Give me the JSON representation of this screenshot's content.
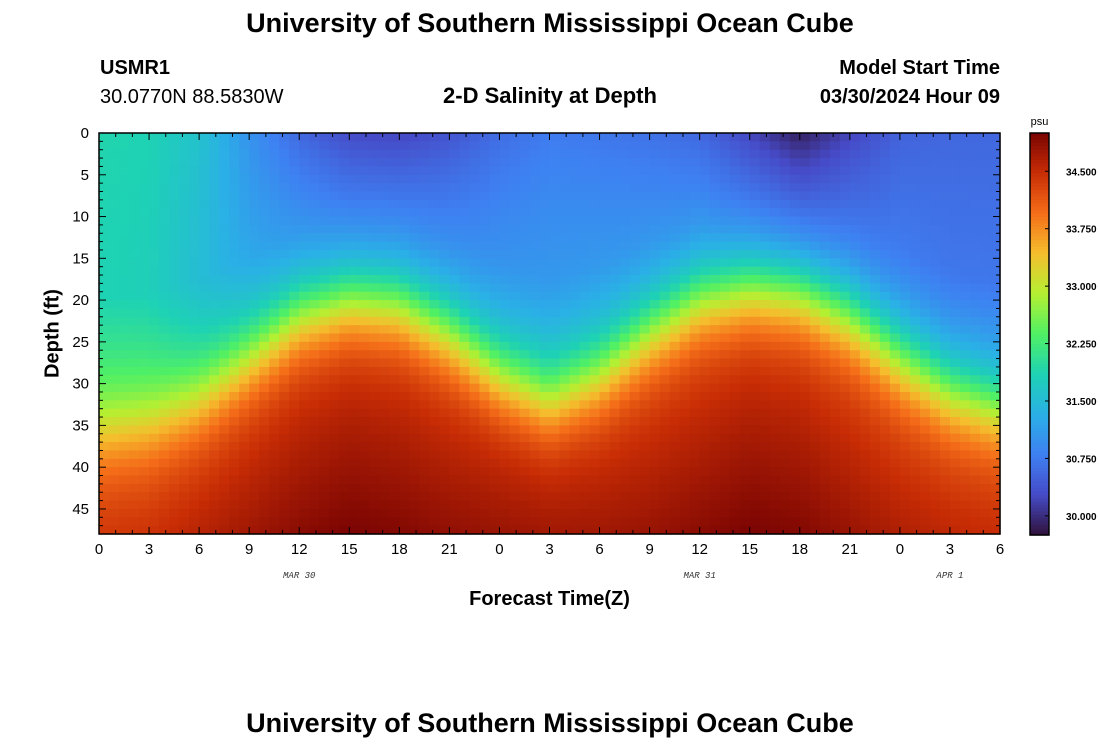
{
  "header": {
    "title": "University of Southern Mississippi Ocean Cube",
    "station_id": "USMR1",
    "station_coords": "30.0770N  88.5830W",
    "model_label": "Model Start Time",
    "model_time": "03/30/2024 Hour 09"
  },
  "footer": {
    "title": "University of Southern Mississippi Ocean Cube"
  },
  "chart_data": {
    "type": "heatmap",
    "title": "2-D Salinity at Depth",
    "xlabel": "Forecast Time(Z)",
    "ylabel": "Depth (ft)",
    "x_tick_labels": [
      "0",
      "3",
      "6",
      "9",
      "12",
      "15",
      "18",
      "21",
      "0",
      "3",
      "6",
      "9",
      "12",
      "15",
      "18",
      "21",
      "0",
      "3",
      "6"
    ],
    "x_range_hours": [
      0,
      54
    ],
    "day_labels": [
      {
        "text": "MAR 30",
        "hour": 12
      },
      {
        "text": "MAR 31",
        "hour": 36
      },
      {
        "text": "APR 1",
        "hour": 51
      }
    ],
    "y_ticks": [
      0,
      5,
      10,
      15,
      20,
      25,
      30,
      35,
      40,
      45
    ],
    "y_range": [
      0,
      48
    ],
    "y_inverted": true,
    "colorbar": {
      "unit": "psu",
      "range": [
        29.75,
        35.0
      ],
      "ticks": [
        30.0,
        30.75,
        31.5,
        32.25,
        33.0,
        33.75,
        34.5
      ],
      "tick_labels": [
        "30.000",
        "30.750",
        "31.500",
        "32.250",
        "33.000",
        "33.750",
        "34.500"
      ],
      "colormap": "turbo"
    },
    "halocline_depth_ft": [
      {
        "hour": 0,
        "depth": 36
      },
      {
        "hour": 3,
        "depth": 35
      },
      {
        "hour": 6,
        "depth": 32
      },
      {
        "hour": 9,
        "depth": 27
      },
      {
        "hour": 12,
        "depth": 22
      },
      {
        "hour": 15,
        "depth": 20
      },
      {
        "hour": 18,
        "depth": 20.5
      },
      {
        "hour": 21,
        "depth": 24
      },
      {
        "hour": 24,
        "depth": 29
      },
      {
        "hour": 27,
        "depth": 32
      },
      {
        "hour": 30,
        "depth": 29
      },
      {
        "hour": 33,
        "depth": 24
      },
      {
        "hour": 36,
        "depth": 20
      },
      {
        "hour": 39,
        "depth": 18.5
      },
      {
        "hour": 42,
        "depth": 19
      },
      {
        "hour": 45,
        "depth": 22
      },
      {
        "hour": 48,
        "depth": 27
      },
      {
        "hour": 51,
        "depth": 31
      },
      {
        "hour": 54,
        "depth": 33
      }
    ],
    "surface_salinity_psu": [
      {
        "hour": 0,
        "value": 31.9
      },
      {
        "hour": 3,
        "value": 31.85
      },
      {
        "hour": 6,
        "value": 31.6
      },
      {
        "hour": 9,
        "value": 31.0
      },
      {
        "hour": 12,
        "value": 30.55
      },
      {
        "hour": 15,
        "value": 30.25
      },
      {
        "hour": 18,
        "value": 30.2
      },
      {
        "hour": 21,
        "value": 30.35
      },
      {
        "hour": 24,
        "value": 30.6
      },
      {
        "hour": 27,
        "value": 30.75
      },
      {
        "hour": 30,
        "value": 30.7
      },
      {
        "hour": 33,
        "value": 30.65
      },
      {
        "hour": 36,
        "value": 30.55
      },
      {
        "hour": 39,
        "value": 30.2
      },
      {
        "hour": 42,
        "value": 29.85
      },
      {
        "hour": 45,
        "value": 30.2
      },
      {
        "hour": 48,
        "value": 30.5
      },
      {
        "hour": 51,
        "value": 30.55
      },
      {
        "hour": 54,
        "value": 30.55
      }
    ],
    "mid_salinity_psu": [
      {
        "hour": 0,
        "value": 31.85
      },
      {
        "hour": 3,
        "value": 31.8
      },
      {
        "hour": 6,
        "value": 31.5
      },
      {
        "hour": 9,
        "value": 31.2
      },
      {
        "hour": 12,
        "value": 31.0
      },
      {
        "hour": 15,
        "value": 30.85
      },
      {
        "hour": 18,
        "value": 30.85
      },
      {
        "hour": 21,
        "value": 30.9
      },
      {
        "hour": 24,
        "value": 31.0
      },
      {
        "hour": 27,
        "value": 31.05
      },
      {
        "hour": 30,
        "value": 31.05
      },
      {
        "hour": 33,
        "value": 31.0
      },
      {
        "hour": 36,
        "value": 30.95
      },
      {
        "hour": 39,
        "value": 30.75
      },
      {
        "hour": 42,
        "value": 30.6
      },
      {
        "hour": 45,
        "value": 30.7
      },
      {
        "hour": 48,
        "value": 30.75
      },
      {
        "hour": 51,
        "value": 30.7
      },
      {
        "hour": 54,
        "value": 30.7
      }
    ],
    "bottom_salinity_psu": [
      {
        "hour": 0,
        "value": 34.4
      },
      {
        "hour": 3,
        "value": 34.45
      },
      {
        "hour": 6,
        "value": 34.6
      },
      {
        "hour": 9,
        "value": 34.75
      },
      {
        "hour": 12,
        "value": 34.9
      },
      {
        "hour": 15,
        "value": 35.0
      },
      {
        "hour": 18,
        "value": 34.95
      },
      {
        "hour": 21,
        "value": 34.85
      },
      {
        "hour": 24,
        "value": 34.8
      },
      {
        "hour": 27,
        "value": 34.75
      },
      {
        "hour": 30,
        "value": 34.75
      },
      {
        "hour": 33,
        "value": 34.8
      },
      {
        "hour": 36,
        "value": 34.9
      },
      {
        "hour": 39,
        "value": 35.0
      },
      {
        "hour": 42,
        "value": 34.95
      },
      {
        "hour": 45,
        "value": 34.8
      },
      {
        "hour": 48,
        "value": 34.65
      },
      {
        "hour": 51,
        "value": 34.55
      },
      {
        "hour": 54,
        "value": 34.5
      }
    ]
  }
}
